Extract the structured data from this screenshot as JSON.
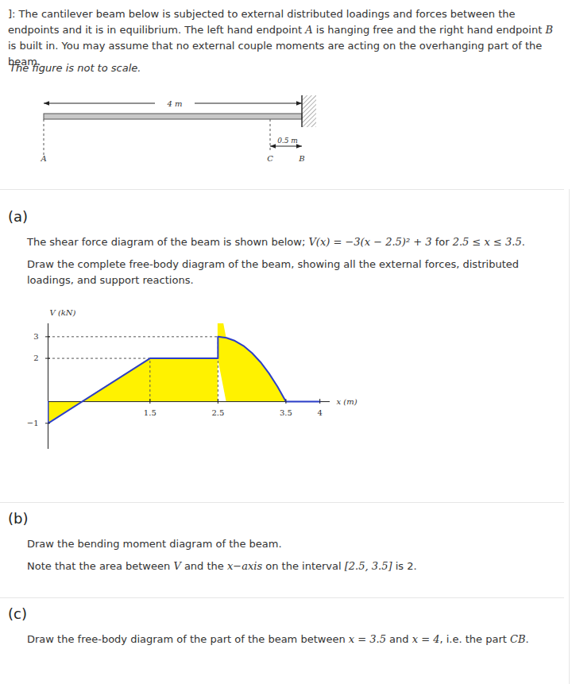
{
  "header": {
    "intro": [
      {
        "text": "]: The cantilever beam below is subjected to external distributed loadings and forces between the endpoints and it is in equilibrium. The left hand endpoint "
      },
      {
        "text": "A",
        "math": true
      },
      {
        "text": " is hanging free and the right hand endpoint "
      },
      {
        "text": "B",
        "math": true
      },
      {
        "text": " is built in. You may assume that no external couple moments are acting on the overhanging part of the beam."
      }
    ],
    "note": "The figure is not to scale."
  },
  "figure": {
    "length_label": "4 m",
    "overhang_label": "0.5 m",
    "points": [
      "A",
      "C",
      "B"
    ]
  },
  "parts": [
    {
      "label": "(a)",
      "paragraphs": [
        [
          {
            "text": "The shear force diagram of the beam is shown below; "
          },
          {
            "text": "V(x) = −3(x − 2.5)² + 3",
            "math": true
          },
          {
            "text": " for "
          },
          {
            "text": "2.5 ≤ x ≤ 3.5",
            "math": true
          },
          {
            "text": "."
          }
        ],
        [
          {
            "text": "Draw the complete free-body diagram of the beam, showing all the external forces, distributed loadings, and support reactions."
          }
        ]
      ]
    },
    {
      "label": "(b)",
      "paragraphs": [
        [
          {
            "text": "Draw the bending moment diagram of the beam."
          }
        ],
        [
          {
            "text": "Note that the area between "
          },
          {
            "text": "V",
            "math": true
          },
          {
            "text": " and the "
          },
          {
            "text": "x−axis",
            "math": true
          },
          {
            "text": " on the interval "
          },
          {
            "text": "[2.5, 3.5]",
            "math": true
          },
          {
            "text": " is 2."
          }
        ]
      ]
    },
    {
      "label": "(c)",
      "paragraphs": [
        [
          {
            "text": "Draw the free-body diagram of the part of the beam between "
          },
          {
            "text": "x = 3.5",
            "math": true
          },
          {
            "text": " and "
          },
          {
            "text": "x = 4",
            "math": true
          },
          {
            "text": ", i.e. the part "
          },
          {
            "text": "CB",
            "math": true
          },
          {
            "text": "."
          }
        ]
      ]
    }
  ],
  "chart_data": {
    "type": "area",
    "y_label": "V (kN)",
    "x_label": "x (m)",
    "x": [
      0,
      0,
      1.5,
      2.5,
      2.5,
      2.625,
      2.75,
      2.875,
      3,
      3.125,
      3.25,
      3.375,
      3.5,
      4
    ],
    "values": [
      0,
      -1,
      2,
      2,
      3,
      2.95,
      2.81,
      2.58,
      2.25,
      1.83,
      1.31,
      0.7,
      0,
      0
    ],
    "colors": [
      "#fff200",
      "#2b3ec9"
    ],
    "xlim": [
      0,
      4.15
    ],
    "ylim": [
      -2.2,
      3.6
    ],
    "xticks": [
      1.5,
      2.5,
      3.5,
      4
    ],
    "yticks": [
      3,
      2,
      {
        "value": -1,
        "label": "−1"
      }
    ],
    "guides": [
      {
        "x": 1.5,
        "y": 2
      },
      {
        "x": 2.5,
        "y": 3
      }
    ]
  }
}
